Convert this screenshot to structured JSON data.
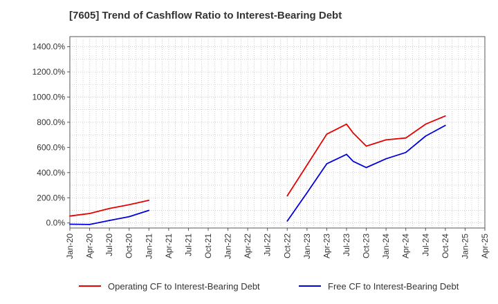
{
  "chart_data": {
    "type": "line",
    "title": "[7605]  Trend of Cashflow Ratio to Interest-Bearing Debt",
    "xlabel": "",
    "ylabel": "",
    "grid": true,
    "legend_position": "bottom",
    "x_ticks": [
      "Jan-20",
      "Apr-20",
      "Jul-20",
      "Oct-20",
      "Jan-21",
      "Apr-21",
      "Jul-21",
      "Oct-21",
      "Jan-22",
      "Apr-22",
      "Jul-22",
      "Oct-22",
      "Jan-23",
      "Apr-23",
      "Jul-23",
      "Oct-23",
      "Jan-24",
      "Apr-24",
      "Jul-24",
      "Oct-24",
      "Jan-25",
      "Apr-25"
    ],
    "y_ticks": [
      "0.0%",
      "200.0%",
      "400.0%",
      "600.0%",
      "800.0%",
      "1000.0%",
      "1200.0%",
      "1400.0%"
    ],
    "y_tick_values": [
      0,
      200,
      400,
      600,
      800,
      1000,
      1200,
      1400
    ],
    "ylim": [
      -40,
      1480
    ],
    "series": [
      {
        "name": "Operating CF to Interest-Bearing Debt",
        "color": "#e60000",
        "segments": [
          [
            {
              "x": "Jan-20",
              "y": 55
            },
            {
              "x": "Apr-20",
              "y": 75
            },
            {
              "x": "Jul-20",
              "y": 115
            },
            {
              "x": "Oct-20",
              "y": 145
            },
            {
              "x": "Jan-21",
              "y": 180
            }
          ],
          [
            {
              "x": "Oct-22",
              "y": 215
            },
            {
              "x": "Jan-23",
              "y": 460
            },
            {
              "x": "Apr-23",
              "y": 705
            },
            {
              "x": "Jul-23",
              "y": 785
            },
            {
              "x": "Aug-23",
              "y": 715
            },
            {
              "x": "Oct-23",
              "y": 610
            },
            {
              "x": "Jan-24",
              "y": 660
            },
            {
              "x": "Apr-24",
              "y": 675
            },
            {
              "x": "Jul-24",
              "y": 785
            },
            {
              "x": "Oct-24",
              "y": 850
            }
          ]
        ]
      },
      {
        "name": "Free CF to Interest-Bearing Debt",
        "color": "#0000dd",
        "segments": [
          [
            {
              "x": "Jan-20",
              "y": -10
            },
            {
              "x": "Apr-20",
              "y": -12
            },
            {
              "x": "Jul-20",
              "y": 20
            },
            {
              "x": "Oct-20",
              "y": 50
            },
            {
              "x": "Jan-21",
              "y": 100
            }
          ],
          [
            {
              "x": "Oct-22",
              "y": 15
            },
            {
              "x": "Jan-23",
              "y": 240
            },
            {
              "x": "Apr-23",
              "y": 470
            },
            {
              "x": "Jul-23",
              "y": 545
            },
            {
              "x": "Aug-23",
              "y": 490
            },
            {
              "x": "Oct-23",
              "y": 440
            },
            {
              "x": "Jan-24",
              "y": 510
            },
            {
              "x": "Apr-24",
              "y": 560
            },
            {
              "x": "Jul-24",
              "y": 690
            },
            {
              "x": "Oct-24",
              "y": 775
            }
          ]
        ]
      }
    ]
  }
}
